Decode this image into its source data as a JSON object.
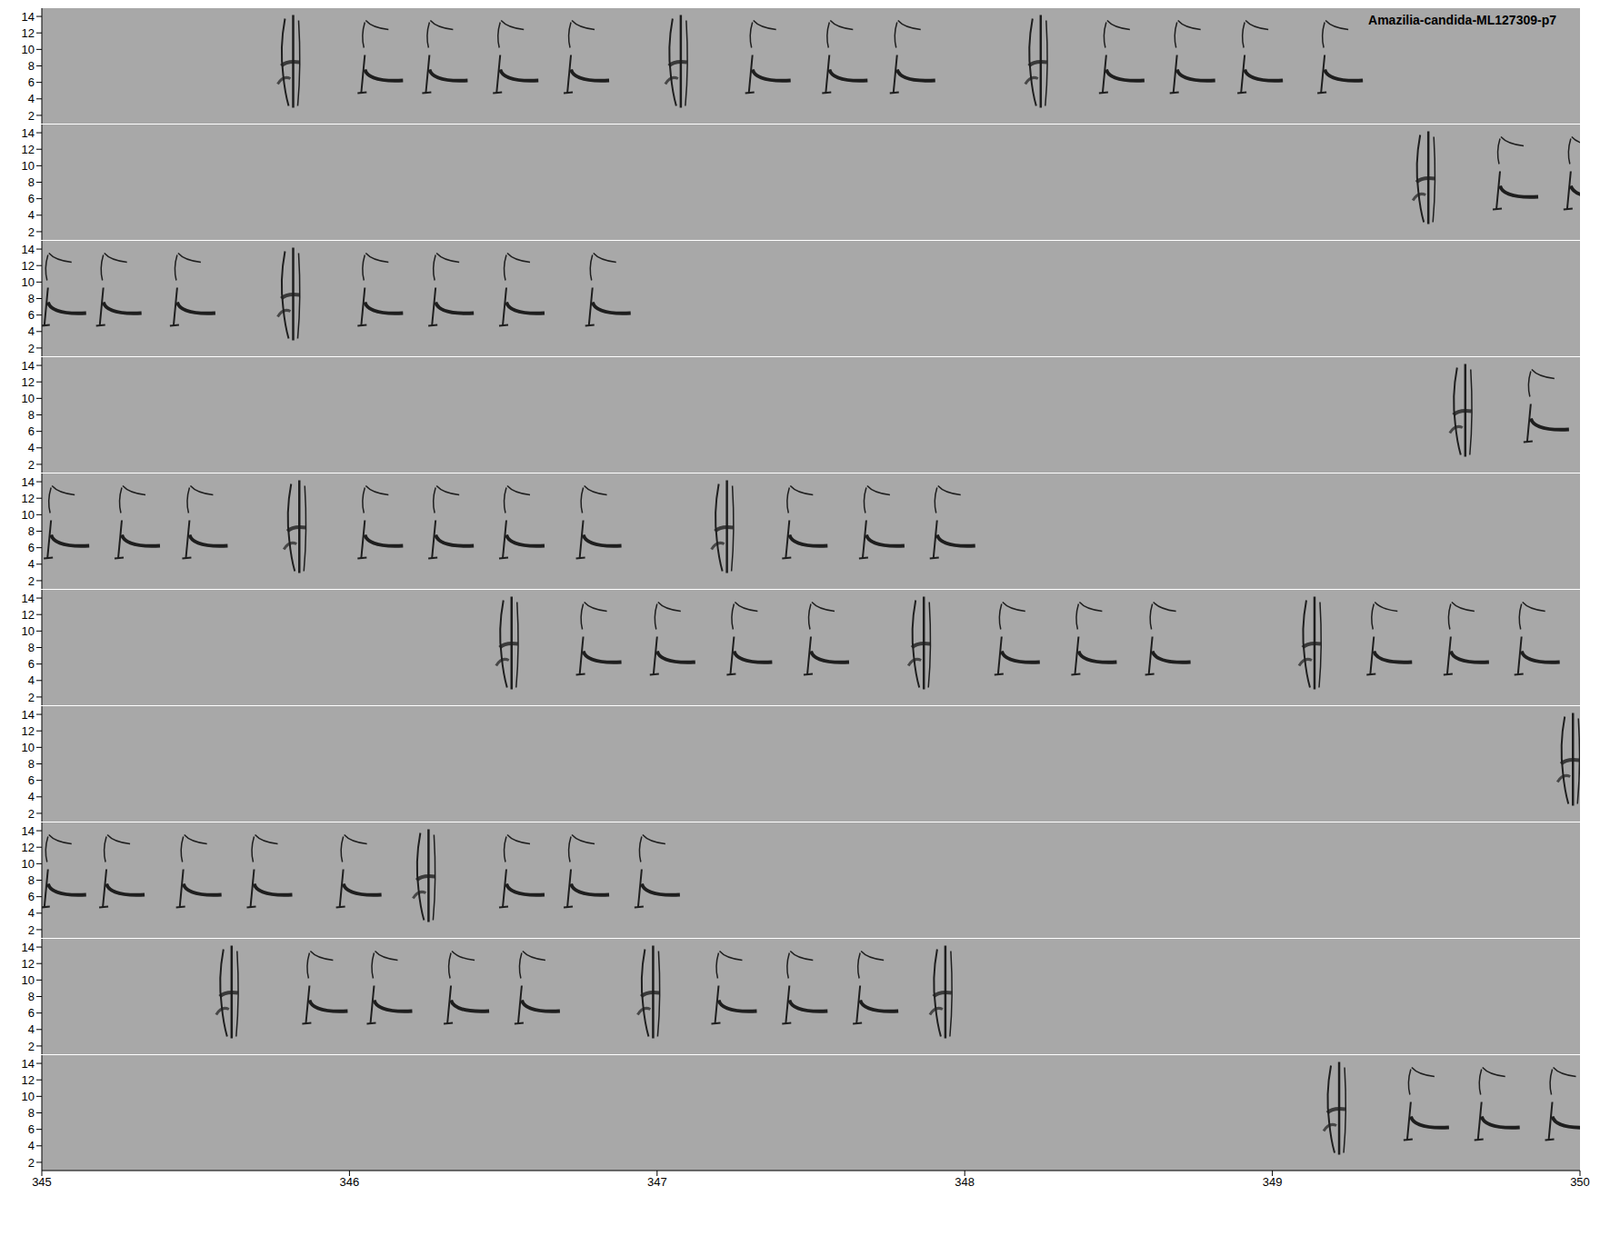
{
  "chart_data": {
    "type": "spectrogram",
    "title": "Amazilia-candida-ML127309-p7",
    "xlim": [
      345,
      350
    ],
    "xticks": [
      345,
      346,
      347,
      348,
      349,
      350
    ],
    "ylim": [
      1,
      15
    ],
    "yticks": [
      2,
      4,
      6,
      8,
      10,
      12,
      14
    ],
    "color": "#1e1e1e",
    "rows": [
      {
        "long_notes": [
          345.82,
          347.08,
          348.25
        ],
        "short_notes": [
          346.05,
          346.26,
          346.49,
          346.72,
          347.31,
          347.56,
          347.78,
          348.46,
          348.69,
          348.91,
          349.17
        ]
      },
      {
        "long_notes": [
          349.51
        ],
        "short_notes": [
          349.74,
          349.97
        ]
      },
      {
        "long_notes": [
          345.82
        ],
        "short_notes": [
          345.02,
          345.2,
          345.44,
          346.05,
          346.28,
          346.51,
          346.79
        ]
      },
      {
        "long_notes": [
          349.63
        ],
        "short_notes": [
          349.84
        ]
      },
      {
        "long_notes": [
          345.84,
          347.23
        ],
        "short_notes": [
          345.03,
          345.26,
          345.48,
          346.05,
          346.28,
          346.51,
          346.76,
          347.43,
          347.68,
          347.91
        ]
      },
      {
        "long_notes": [
          346.53,
          347.87,
          349.14
        ],
        "short_notes": [
          346.76,
          347.0,
          347.25,
          347.5,
          348.12,
          348.37,
          348.61,
          349.33,
          349.58,
          349.81
        ]
      },
      {
        "long_notes": [
          349.98
        ],
        "short_notes": []
      },
      {
        "long_notes": [
          346.26
        ],
        "short_notes": [
          345.02,
          345.21,
          345.46,
          345.69,
          345.98,
          346.51,
          346.72,
          346.95
        ]
      },
      {
        "long_notes": [
          345.62,
          346.99,
          347.94
        ],
        "short_notes": [
          345.87,
          346.08,
          346.33,
          346.56,
          347.2,
          347.43,
          347.66
        ]
      },
      {
        "long_notes": [
          349.22
        ],
        "short_notes": [
          349.45,
          349.68,
          349.91
        ]
      }
    ]
  }
}
